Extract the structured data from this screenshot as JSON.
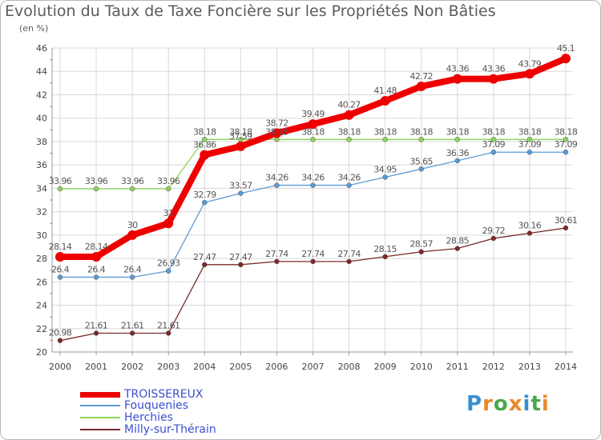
{
  "title": "Evolution du Taux de Taxe Foncière sur les Propriétés Non Bâties",
  "subtitle": "(en %)",
  "logo": {
    "text": "Proxiti",
    "colors": [
      "#3a8fd0",
      "#e98a2a",
      "#4aa84a",
      "#e98a2a",
      "#3a8fd0",
      "#4aa84a",
      "#e98a2a"
    ]
  },
  "chart_data": {
    "type": "line",
    "x": [
      "2000",
      "2001",
      "2002",
      "2003",
      "2004",
      "2005",
      "2006",
      "2007",
      "2008",
      "2009",
      "2010",
      "2011",
      "2012",
      "2013",
      "2014"
    ],
    "ylim": [
      20,
      46
    ],
    "yticks": [
      20,
      22,
      24,
      26,
      28,
      30,
      32,
      34,
      36,
      38,
      40,
      42,
      44,
      46
    ],
    "grid": true,
    "legend_position": "bottom-left",
    "series": [
      {
        "name": "TROISSEREUX",
        "color": "#ee0000",
        "width": 8,
        "marker": 6,
        "values": [
          28.14,
          28.14,
          30,
          31,
          36.86,
          37.59,
          38.72,
          39.49,
          40.27,
          41.48,
          42.72,
          43.36,
          43.36,
          43.79,
          45.1
        ],
        "labels": [
          "28.14",
          "28.14",
          "30",
          "31",
          "36.86",
          "37.59",
          "38.72",
          "39.49",
          "40.27",
          "41.48",
          "42.72",
          "43.36",
          "43.36",
          "43.79",
          "45.1"
        ]
      },
      {
        "name": "Fouquenies",
        "color": "#5b9bd5",
        "width": 1.3,
        "marker": 3,
        "values": [
          26.4,
          26.4,
          26.4,
          26.93,
          32.79,
          33.57,
          34.26,
          34.26,
          34.26,
          34.95,
          35.65,
          36.36,
          37.09,
          37.09,
          37.09
        ],
        "labels": [
          "26.4",
          "26.4",
          "26.4",
          "26.93",
          "32.79",
          "33.57",
          "34.26",
          "34.26",
          "34.26",
          "34.95",
          "35.65",
          "36.36",
          "37.09",
          "37.09",
          "37.09"
        ]
      },
      {
        "name": "Herchies",
        "color": "#8cd35a",
        "width": 1.3,
        "marker": 3,
        "values": [
          33.96,
          33.96,
          33.96,
          33.96,
          38.18,
          38.18,
          38.18,
          38.18,
          38.18,
          38.18,
          38.18,
          38.18,
          38.18,
          38.18,
          38.18
        ],
        "labels": [
          "33.96",
          "33.96",
          "33.96",
          "33.96",
          "38.18",
          "38.18",
          "38.18",
          "38.18",
          "38.18",
          "38.18",
          "38.18",
          "38.18",
          "38.18",
          "38.18",
          "38.18"
        ]
      },
      {
        "name": "Milly-sur-Thérain",
        "color": "#7a2a2a",
        "width": 1.3,
        "marker": 3,
        "values": [
          20.98,
          21.61,
          21.61,
          21.61,
          27.47,
          27.47,
          27.74,
          27.74,
          27.74,
          28.15,
          28.57,
          28.85,
          29.72,
          30.16,
          30.61
        ],
        "labels": [
          "20.98",
          "21.61",
          "21.61",
          "21.61",
          "27.47",
          "27.47",
          "27.74",
          "27.74",
          "27.74",
          "28.15",
          "28.57",
          "28.85",
          "29.72",
          "30.16",
          "30.61"
        ]
      }
    ]
  }
}
